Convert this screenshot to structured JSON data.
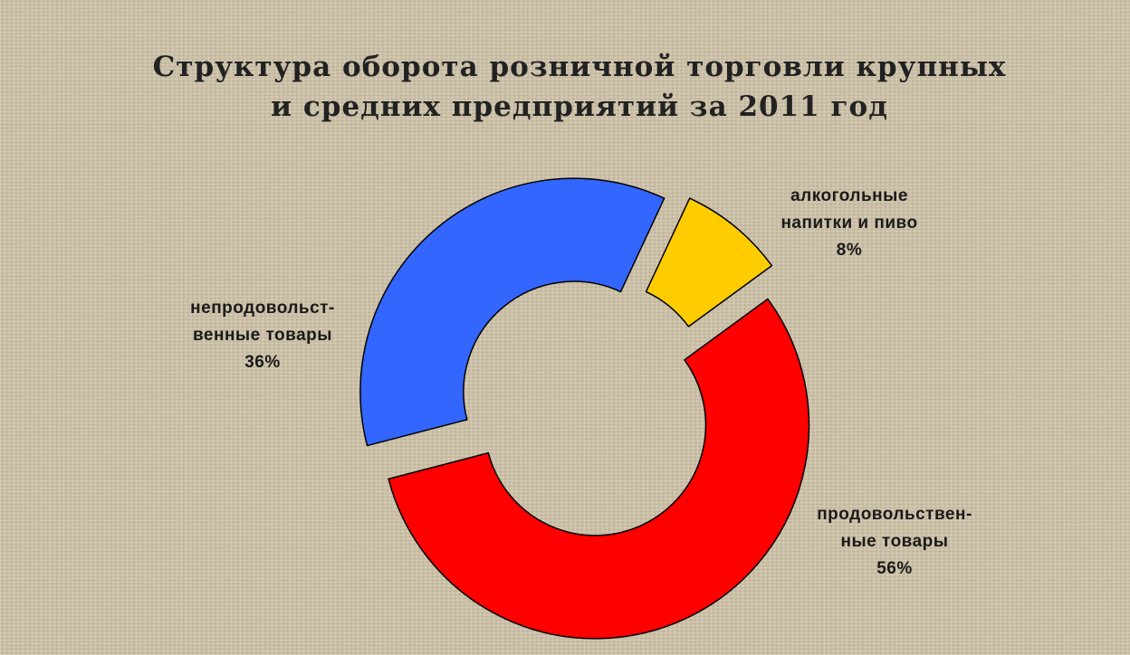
{
  "chart_data": {
    "type": "pie",
    "subtype": "donut",
    "title": "Структура оборота розничной торговли крупных и средних предприятий за  2011 год",
    "slices": [
      {
        "label_lines": [
          "алкогольные",
          "напитки и пиво"
        ],
        "percent_label": "8%",
        "value": 8,
        "color": "#ffcc00",
        "exploded": true
      },
      {
        "label_lines": [
          "продовольствен-",
          "ные товары"
        ],
        "percent_label": "56%",
        "value": 56,
        "color": "#ff0000",
        "exploded": true
      },
      {
        "label_lines": [
          "непродовольст-",
          "венные товары"
        ],
        "percent_label": "36%",
        "value": 36,
        "color": "#3366ff",
        "exploded": true
      }
    ],
    "legend": "none",
    "grid": false
  }
}
